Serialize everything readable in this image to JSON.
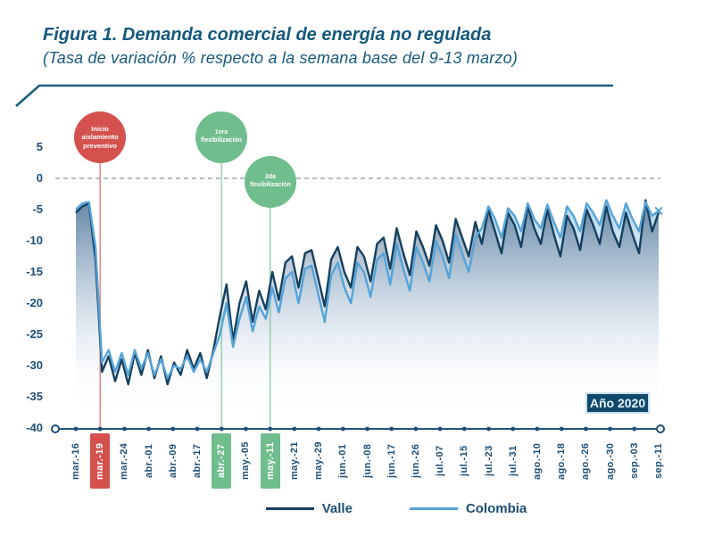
{
  "title": "Figura 1. Demanda comercial de energía no regulada",
  "subtitle": "(Tasa de variación % respecto a la semana base del  9-13 marzo)",
  "year_badge": "Año 2020",
  "colors": {
    "title_text": "#15587d",
    "axis_text": "#1d4e75",
    "valle_line": "#15405e",
    "colombia_line": "#55a3d8",
    "alert_red": "#d5514e",
    "flex_green": "#70bd8d",
    "year_badge_bg": "#10496b",
    "zero_gridline": "#9fabb6"
  },
  "annotations": [
    {
      "label": "Inicio aislamiento preventivo",
      "lines": [
        "Inicio",
        "aislamiento",
        "preventivo"
      ],
      "color": "#d5514e",
      "tick_index": 1,
      "row": 1
    },
    {
      "label": "1era flexibilización",
      "lines": [
        "1era",
        "flexibilización"
      ],
      "color": "#70bd8d",
      "tick_index": 6,
      "row": 1
    },
    {
      "label": "2da flexibilización",
      "lines": [
        "2da",
        "flexibilización"
      ],
      "color": "#70bd8d",
      "tick_index": 8,
      "row": 2
    }
  ],
  "legend": [
    {
      "label": "Valle"
    },
    {
      "label": "Colombia"
    }
  ],
  "chart_data": {
    "type": "line",
    "title": "Figura 1. Demanda comercial de energía no regulada",
    "xlabel": "",
    "ylabel": "Tasa de variación % respecto a la semana base del 9-13 marzo",
    "ylim": [
      -40,
      5
    ],
    "yticks": [
      5,
      0,
      -5,
      -10,
      -15,
      -20,
      -25,
      -30,
      -35,
      -40
    ],
    "grid": "dashed horizontal line at 0 only",
    "legend_position": "bottom",
    "x_ticks": [
      {
        "label": "mar.-16",
        "highlight": null
      },
      {
        "label": "mar.-19",
        "highlight": "red"
      },
      {
        "label": "mar.-24",
        "highlight": null
      },
      {
        "label": "abr.-01",
        "highlight": null
      },
      {
        "label": "abr.-09",
        "highlight": null
      },
      {
        "label": "abr.-17",
        "highlight": null
      },
      {
        "label": "abr.-27",
        "highlight": "green"
      },
      {
        "label": "may.-05",
        "highlight": null
      },
      {
        "label": "may.-11",
        "highlight": "green"
      },
      {
        "label": "may.-21",
        "highlight": null
      },
      {
        "label": "may.-29",
        "highlight": null
      },
      {
        "label": "jun.-01",
        "highlight": null
      },
      {
        "label": "jun.-08",
        "highlight": null
      },
      {
        "label": "jun.-17",
        "highlight": null
      },
      {
        "label": "jun.-26",
        "highlight": null
      },
      {
        "label": "jul.-07",
        "highlight": null
      },
      {
        "label": "jul.-15",
        "highlight": null
      },
      {
        "label": "jul.-23",
        "highlight": null
      },
      {
        "label": "jul.-31",
        "highlight": null
      },
      {
        "label": "ago.-10",
        "highlight": null
      },
      {
        "label": "ago.-18",
        "highlight": null
      },
      {
        "label": "ago.-26",
        "highlight": null
      },
      {
        "label": "ago.-30",
        "highlight": null
      },
      {
        "label": "sep.-03",
        "highlight": null
      },
      {
        "label": "sep.-11",
        "highlight": null
      }
    ],
    "series": [
      {
        "name": "Valle",
        "color": "#15405e",
        "values": [
          -5.5,
          -4.5,
          -4,
          -13,
          -31,
          -28.5,
          -32.5,
          -29,
          -33,
          -28,
          -31.5,
          -27.5,
          -32,
          -28.5,
          -33,
          -29.5,
          -31.5,
          -27.5,
          -30.5,
          -28,
          -32,
          -27.5,
          -22,
          -17,
          -26,
          -20,
          -16.5,
          -23,
          -18,
          -21,
          -15,
          -19.5,
          -13.5,
          -12.5,
          -17.5,
          -12,
          -11.5,
          -16,
          -20.5,
          -13,
          -11,
          -15,
          -17.5,
          -11,
          -12.5,
          -16.5,
          -10.5,
          -9.5,
          -14.5,
          -8,
          -12,
          -15.5,
          -8.5,
          -11,
          -14,
          -7.5,
          -10,
          -13.5,
          -6.5,
          -9.5,
          -12.5,
          -7,
          -10.5,
          -5,
          -8.5,
          -12,
          -5.5,
          -7.5,
          -11,
          -4.5,
          -8,
          -10.5,
          -5,
          -9,
          -12.5,
          -6,
          -8,
          -11.5,
          -5,
          -7.5,
          -10.5,
          -4.5,
          -8.5,
          -11,
          -5.5,
          -9,
          -12,
          -3.5,
          -8.5,
          -5.5
        ]
      },
      {
        "name": "Colombia",
        "color": "#55a3d8",
        "values": [
          -5,
          -4,
          -3.8,
          -11,
          -29.5,
          -27.5,
          -31,
          -28,
          -31.5,
          -27.5,
          -30.5,
          -28,
          -31.5,
          -29,
          -32,
          -30,
          -30.5,
          -28.5,
          -31,
          -29,
          -31,
          -28,
          -25,
          -20,
          -27,
          -22.5,
          -19,
          -24.5,
          -20.5,
          -22.5,
          -17.5,
          -21.5,
          -16,
          -15,
          -20,
          -14.5,
          -14,
          -18.5,
          -23,
          -15.5,
          -13.5,
          -17.5,
          -20,
          -13.5,
          -15,
          -19,
          -13,
          -12,
          -17,
          -10.5,
          -14.5,
          -18,
          -11,
          -13.5,
          -16.5,
          -10,
          -12.5,
          -16,
          -9,
          -12,
          -15,
          -9.5,
          -8,
          -4.5,
          -6.5,
          -9.5,
          -4.8,
          -6,
          -8.5,
          -4,
          -6.5,
          -8,
          -4.2,
          -7,
          -9.5,
          -4.5,
          -6,
          -8.5,
          -4,
          -5.5,
          -7.5,
          -3.5,
          -6,
          -8,
          -4,
          -6.5,
          -8.5,
          -3.8,
          -6,
          -5.2
        ]
      }
    ]
  }
}
